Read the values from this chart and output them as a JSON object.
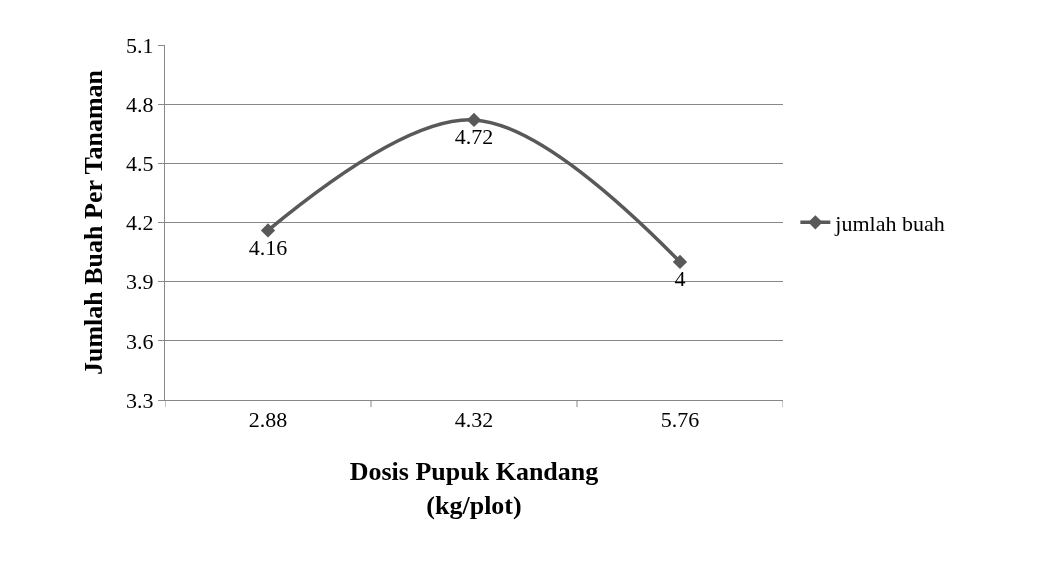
{
  "chart_data": {
    "type": "line",
    "xlabel": "Dosis Pupuk Kandang\n(kg/plot)",
    "ylabel": "Jumlah Buah Per Tanaman",
    "categories": [
      "2.88",
      "4.32",
      "5.76"
    ],
    "series": [
      {
        "name": "jumlah buah",
        "color": "#595959",
        "values": [
          4.16,
          4.72,
          4
        ]
      }
    ],
    "ylim": [
      3.3,
      5.1
    ],
    "yticks": [
      3.3,
      3.6,
      3.9,
      4.2,
      4.5,
      4.8,
      5.1
    ],
    "grid": "y",
    "legend": "right",
    "marker": "diamond",
    "line_style": "solid",
    "data_labels": true
  }
}
